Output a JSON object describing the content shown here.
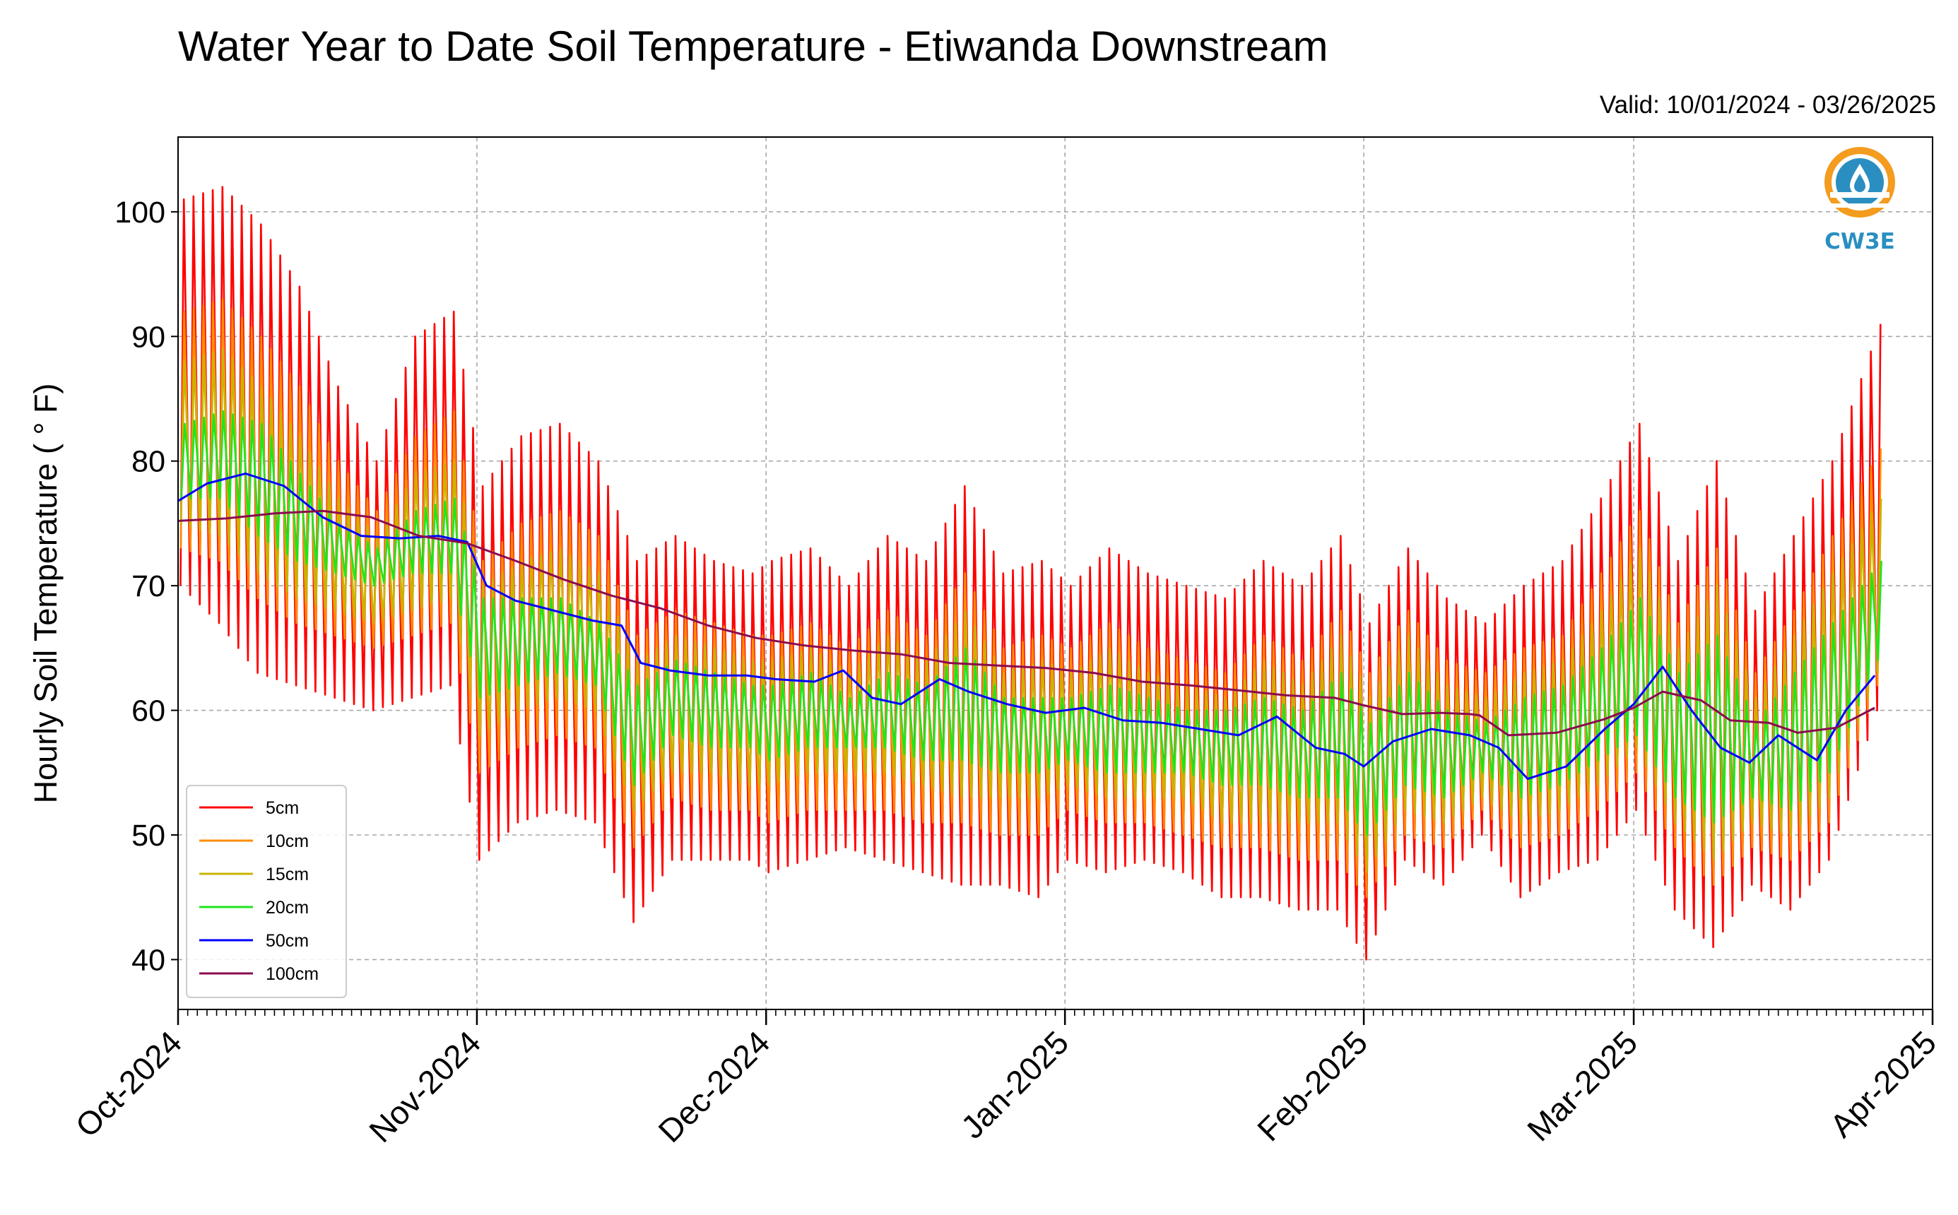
{
  "chart_data": {
    "type": "line",
    "title": "Water Year to Date Soil Temperature - Etiwanda Downstream",
    "subtitle": "Valid: 10/01/2024 - 03/26/2025",
    "ylabel": "Hourly Soil Temperature ( ° F)",
    "xlabel": "",
    "xlim": [
      "2024-10-01",
      "2025-04-01"
    ],
    "ylim": [
      36,
      106
    ],
    "yticks": [
      40,
      50,
      60,
      70,
      80,
      90,
      100
    ],
    "xticks": [
      {
        "date": "2024-10-01",
        "label": "Oct-2024"
      },
      {
        "date": "2024-11-01",
        "label": "Nov-2024"
      },
      {
        "date": "2024-12-01",
        "label": "Dec-2024"
      },
      {
        "date": "2025-01-01",
        "label": "Jan-2025"
      },
      {
        "date": "2025-02-01",
        "label": "Feb-2025"
      },
      {
        "date": "2025-03-01",
        "label": "Mar-2025"
      },
      {
        "date": "2025-04-01",
        "label": "Apr-2025"
      }
    ],
    "grid": true,
    "legend_position": "lower-left",
    "series": [
      {
        "name": "5cm",
        "color": "#ff0000",
        "kind": "daily_max_min",
        "x": [
          "2024-10-01",
          "2024-10-05",
          "2024-10-09",
          "2024-10-13",
          "2024-10-17",
          "2024-10-21",
          "2024-10-25",
          "2024-10-29",
          "2024-11-01",
          "2024-11-05",
          "2024-11-09",
          "2024-11-13",
          "2024-11-17",
          "2024-11-21",
          "2024-11-25",
          "2024-11-29",
          "2024-12-01",
          "2024-12-05",
          "2024-12-09",
          "2024-12-13",
          "2024-12-17",
          "2024-12-21",
          "2024-12-25",
          "2024-12-29",
          "2025-01-01",
          "2025-01-05",
          "2025-01-09",
          "2025-01-13",
          "2025-01-17",
          "2025-01-21",
          "2025-01-25",
          "2025-01-29",
          "2025-02-01",
          "2025-02-05",
          "2025-02-09",
          "2025-02-13",
          "2025-02-17",
          "2025-02-21",
          "2025-02-25",
          "2025-03-01",
          "2025-03-05",
          "2025-03-09",
          "2025-03-13",
          "2025-03-17",
          "2025-03-21",
          "2025-03-26"
        ],
        "max": [
          101,
          102,
          99,
          94,
          86,
          80,
          90,
          92,
          78,
          82,
          83,
          80,
          72,
          74,
          72,
          71,
          72,
          73,
          70,
          74,
          72,
          78,
          71,
          72,
          70,
          73,
          71,
          70,
          69,
          72,
          70,
          74,
          67,
          73,
          69,
          67,
          70,
          72,
          77,
          83,
          72,
          80,
          68,
          74,
          80,
          91
        ],
        "min": [
          70,
          67,
          63,
          62,
          61,
          60,
          61,
          62,
          48,
          51,
          52,
          51,
          43,
          48,
          48,
          48,
          47,
          48,
          49,
          48,
          47,
          46,
          46,
          45,
          48,
          47,
          48,
          47,
          45,
          45,
          44,
          44,
          40,
          48,
          46,
          50,
          45,
          47,
          48,
          52,
          44,
          41,
          46,
          44,
          48,
          60
        ]
      },
      {
        "name": "10cm",
        "color": "#ff8c00",
        "kind": "daily_max_min",
        "x": [
          "2024-10-01",
          "2024-10-05",
          "2024-10-09",
          "2024-10-13",
          "2024-10-17",
          "2024-10-21",
          "2024-10-25",
          "2024-10-29",
          "2024-11-01",
          "2024-11-05",
          "2024-11-09",
          "2024-11-13",
          "2024-11-17",
          "2024-11-21",
          "2024-11-25",
          "2024-11-29",
          "2024-12-01",
          "2024-12-05",
          "2024-12-09",
          "2024-12-13",
          "2024-12-17",
          "2024-12-21",
          "2024-12-25",
          "2024-12-29",
          "2025-01-01",
          "2025-01-05",
          "2025-01-09",
          "2025-01-13",
          "2025-01-17",
          "2025-01-21",
          "2025-01-25",
          "2025-01-29",
          "2025-02-01",
          "2025-02-05",
          "2025-02-09",
          "2025-02-13",
          "2025-02-17",
          "2025-02-21",
          "2025-02-25",
          "2025-03-01",
          "2025-03-05",
          "2025-03-09",
          "2025-03-13",
          "2025-03-17",
          "2025-03-21",
          "2025-03-26"
        ],
        "max": [
          92,
          93,
          90,
          86,
          80,
          76,
          82,
          84,
          72,
          75,
          76,
          74,
          66,
          68,
          67,
          66,
          66,
          67,
          65,
          68,
          66,
          71,
          65,
          66,
          65,
          67,
          65,
          64,
          63,
          66,
          64,
          68,
          63,
          68,
          64,
          63,
          65,
          66,
          71,
          76,
          67,
          73,
          63,
          68,
          74,
          81
        ],
        "min": [
          73,
          72,
          69,
          67,
          66,
          65,
          66,
          67,
          55,
          57,
          58,
          57,
          49,
          53,
          52,
          52,
          51,
          52,
          52,
          52,
          51,
          51,
          50,
          50,
          52,
          51,
          51,
          50,
          49,
          49,
          48,
          48,
          45,
          50,
          49,
          52,
          49,
          50,
          52,
          55,
          49,
          46,
          49,
          48,
          51,
          62
        ]
      },
      {
        "name": "15cm",
        "color": "#c8b400",
        "kind": "daily_max_min",
        "x": [
          "2024-10-01",
          "2024-10-05",
          "2024-10-09",
          "2024-10-13",
          "2024-10-17",
          "2024-10-21",
          "2024-10-25",
          "2024-10-29",
          "2024-11-01",
          "2024-11-05",
          "2024-11-09",
          "2024-11-13",
          "2024-11-17",
          "2024-11-21",
          "2024-11-25",
          "2024-11-29",
          "2024-12-01",
          "2024-12-05",
          "2024-12-09",
          "2024-12-13",
          "2024-12-17",
          "2024-12-21",
          "2024-12-25",
          "2024-12-29",
          "2025-01-01",
          "2025-01-05",
          "2025-01-09",
          "2025-01-13",
          "2025-01-17",
          "2025-01-21",
          "2025-01-25",
          "2025-01-29",
          "2025-02-01",
          "2025-02-05",
          "2025-02-09",
          "2025-02-13",
          "2025-02-17",
          "2025-02-21",
          "2025-02-25",
          "2025-03-01",
          "2025-03-05",
          "2025-03-09",
          "2025-03-13",
          "2025-03-17",
          "2025-03-21",
          "2025-03-26"
        ],
        "max": [
          88,
          89,
          86,
          82,
          77,
          74,
          79,
          80,
          70,
          72,
          73,
          71,
          64,
          66,
          65,
          64,
          64,
          65,
          63,
          66,
          64,
          68,
          63,
          64,
          63,
          65,
          63,
          62,
          61,
          64,
          62,
          66,
          61,
          66,
          62,
          61,
          63,
          64,
          68,
          73,
          65,
          70,
          61,
          66,
          71,
          77
        ],
        "min": [
          75,
          74,
          71,
          69,
          68,
          67,
          68,
          69,
          58,
          60,
          61,
          60,
          52,
          55,
          55,
          54,
          54,
          55,
          55,
          55,
          54,
          53,
          53,
          53,
          54,
          53,
          53,
          53,
          51,
          51,
          51,
          51,
          47,
          52,
          51,
          53,
          51,
          52,
          54,
          57,
          51,
          48,
          51,
          50,
          53,
          63
        ]
      },
      {
        "name": "20cm",
        "color": "#1ee61e",
        "kind": "daily_max_min",
        "x": [
          "2024-10-01",
          "2024-10-05",
          "2024-10-09",
          "2024-10-13",
          "2024-10-17",
          "2024-10-21",
          "2024-10-25",
          "2024-10-29",
          "2024-11-01",
          "2024-11-05",
          "2024-11-09",
          "2024-11-13",
          "2024-11-17",
          "2024-11-21",
          "2024-11-25",
          "2024-11-29",
          "2024-12-01",
          "2024-12-05",
          "2024-12-09",
          "2024-12-13",
          "2024-12-17",
          "2024-12-21",
          "2024-12-25",
          "2024-12-29",
          "2025-01-01",
          "2025-01-05",
          "2025-01-09",
          "2025-01-13",
          "2025-01-17",
          "2025-01-21",
          "2025-01-25",
          "2025-01-29",
          "2025-02-01",
          "2025-02-05",
          "2025-02-09",
          "2025-02-13",
          "2025-02-17",
          "2025-02-21",
          "2025-02-25",
          "2025-03-01",
          "2025-03-05",
          "2025-03-09",
          "2025-03-13",
          "2025-03-17",
          "2025-03-21",
          "2025-03-26"
        ],
        "max": [
          83,
          84,
          83,
          79,
          75,
          73,
          76,
          77,
          69,
          69,
          69,
          67,
          62,
          64,
          63,
          62,
          62,
          63,
          61,
          63,
          62,
          65,
          61,
          61,
          61,
          62,
          61,
          60,
          60,
          61,
          60,
          63,
          59,
          63,
          60,
          59,
          61,
          62,
          65,
          69,
          63,
          66,
          59,
          63,
          67,
          72
        ],
        "min": [
          77,
          77,
          74,
          72,
          71,
          70,
          71,
          71,
          61,
          62,
          63,
          62,
          54,
          58,
          57,
          57,
          56,
          57,
          57,
          57,
          56,
          56,
          55,
          55,
          56,
          55,
          55,
          55,
          54,
          54,
          53,
          53,
          50,
          54,
          53,
          55,
          53,
          54,
          56,
          58,
          53,
          51,
          53,
          52,
          55,
          64
        ]
      },
      {
        "name": "50cm",
        "color": "#0000ff",
        "kind": "smooth",
        "x": [
          "2024-10-01",
          "2024-10-04",
          "2024-10-08",
          "2024-10-12",
          "2024-10-16",
          "2024-10-20",
          "2024-10-24",
          "2024-10-28",
          "2024-10-31",
          "2024-11-02",
          "2024-11-05",
          "2024-11-09",
          "2024-11-13",
          "2024-11-16",
          "2024-11-18",
          "2024-11-21",
          "2024-11-25",
          "2024-11-29",
          "2024-12-02",
          "2024-12-06",
          "2024-12-09",
          "2024-12-12",
          "2024-12-15",
          "2024-12-19",
          "2024-12-22",
          "2024-12-26",
          "2024-12-30",
          "2025-01-03",
          "2025-01-07",
          "2025-01-11",
          "2025-01-15",
          "2025-01-19",
          "2025-01-23",
          "2025-01-27",
          "2025-01-30",
          "2025-02-01",
          "2025-02-04",
          "2025-02-08",
          "2025-02-12",
          "2025-02-15",
          "2025-02-18",
          "2025-02-22",
          "2025-02-26",
          "2025-03-01",
          "2025-03-04",
          "2025-03-07",
          "2025-03-10",
          "2025-03-13",
          "2025-03-16",
          "2025-03-20",
          "2025-03-23",
          "2025-03-26"
        ],
        "y": [
          76.8,
          78.2,
          79.0,
          78.0,
          75.5,
          74.0,
          73.8,
          74.0,
          73.5,
          70.0,
          68.8,
          68.0,
          67.2,
          66.8,
          63.8,
          63.2,
          62.8,
          62.8,
          62.5,
          62.3,
          63.2,
          61.0,
          60.5,
          62.5,
          61.5,
          60.5,
          59.8,
          60.2,
          59.2,
          59.0,
          58.5,
          58.0,
          59.5,
          57.0,
          56.5,
          55.5,
          57.5,
          58.5,
          58.0,
          57.0,
          54.5,
          55.5,
          58.5,
          60.5,
          63.5,
          60.0,
          57.0,
          55.8,
          58.0,
          56.0,
          60.0,
          62.8
        ]
      },
      {
        "name": "100cm",
        "color": "#8b0a50",
        "kind": "smooth",
        "x": [
          "2024-10-01",
          "2024-10-06",
          "2024-10-11",
          "2024-10-16",
          "2024-10-21",
          "2024-10-26",
          "2024-10-31",
          "2024-11-05",
          "2024-11-10",
          "2024-11-15",
          "2024-11-20",
          "2024-11-25",
          "2024-11-30",
          "2024-12-05",
          "2024-12-10",
          "2024-12-15",
          "2024-12-20",
          "2024-12-25",
          "2024-12-30",
          "2025-01-04",
          "2025-01-09",
          "2025-01-14",
          "2025-01-19",
          "2025-01-24",
          "2025-01-29",
          "2025-02-01",
          "2025-02-05",
          "2025-02-09",
          "2025-02-12",
          "2025-02-13",
          "2025-02-16",
          "2025-02-21",
          "2025-02-26",
          "2025-03-01",
          "2025-03-04",
          "2025-03-08",
          "2025-03-11",
          "2025-03-15",
          "2025-03-18",
          "2025-03-22",
          "2025-03-26"
        ],
        "y": [
          75.2,
          75.4,
          75.8,
          76.0,
          75.5,
          74.0,
          73.4,
          72.0,
          70.5,
          69.2,
          68.2,
          66.8,
          65.8,
          65.2,
          64.8,
          64.5,
          63.8,
          63.6,
          63.4,
          63.0,
          62.3,
          62.0,
          61.6,
          61.2,
          61.0,
          60.4,
          59.7,
          59.8,
          59.7,
          59.6,
          58.0,
          58.2,
          59.3,
          60.2,
          61.5,
          60.8,
          59.2,
          59.0,
          58.2,
          58.6,
          60.2
        ]
      }
    ]
  },
  "logo": {
    "text": "CW3E",
    "color": "#2a8fc0",
    "accent": "#f39c1f"
  }
}
